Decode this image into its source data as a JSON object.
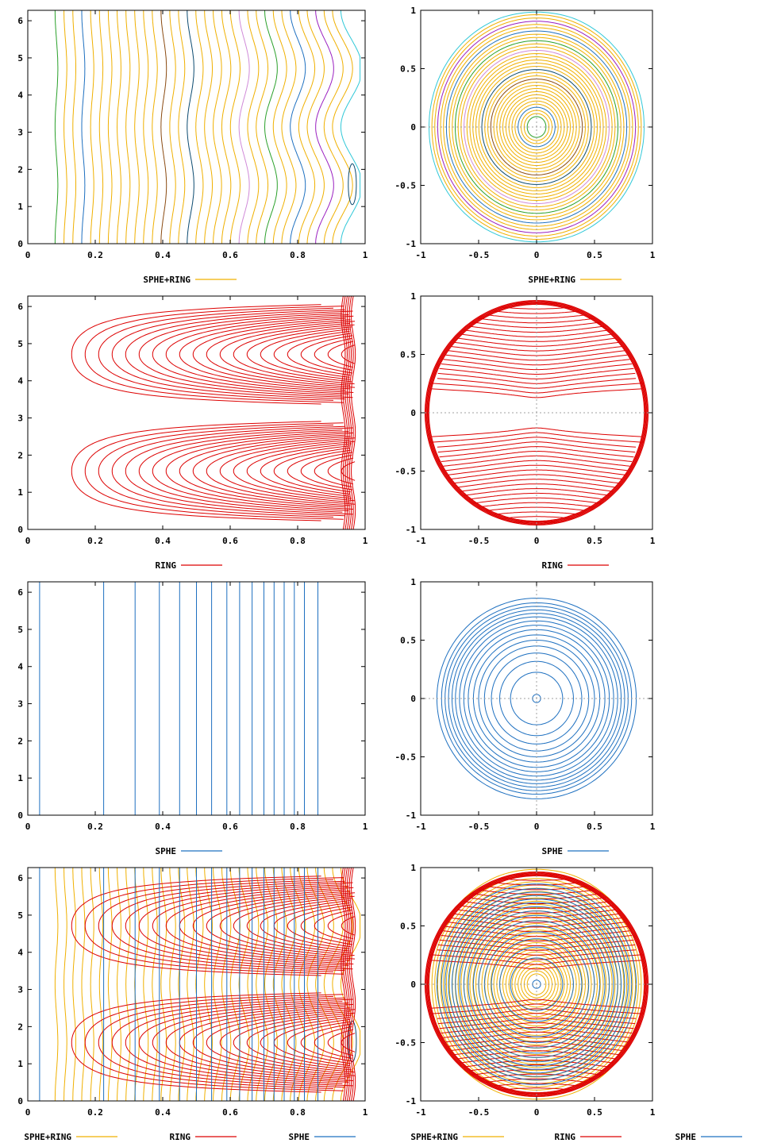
{
  "colors": {
    "sphe_ring": "#f0b000",
    "ring": "#dd0000",
    "sphe": "#1e70c0",
    "axis_grid": "#a0a0a0",
    "frame": "#000000"
  },
  "chart_data": [
    {
      "name": "rect-sphe-ring",
      "type": "contour",
      "coords": "rectangular",
      "xlim": [
        0,
        1
      ],
      "ylim": [
        0,
        6.28
      ],
      "xticks": [
        "0",
        "0.2",
        "0.4",
        "0.6",
        "0.8",
        "1"
      ],
      "yticks": [
        "0",
        "1",
        "2",
        "3",
        "4",
        "5",
        "6"
      ],
      "series": [
        {
          "name": "SPHE+RING",
          "color": "#f0b000"
        }
      ]
    },
    {
      "name": "polar-sphe-ring",
      "type": "contour",
      "coords": "polar",
      "xlim": [
        -1,
        1
      ],
      "ylim": [
        -1,
        1
      ],
      "xticks": [
        "-1",
        "-0.5",
        "0",
        "0.5",
        "1"
      ],
      "yticks": [
        "-1",
        "-0.5",
        "0",
        "0.5",
        "1"
      ],
      "series": [
        {
          "name": "SPHE+RING",
          "color": "#f0b000"
        }
      ]
    },
    {
      "name": "rect-ring",
      "type": "contour",
      "coords": "rectangular",
      "xlim": [
        0,
        1
      ],
      "ylim": [
        0,
        6.28
      ],
      "xticks": [
        "0",
        "0.2",
        "0.4",
        "0.6",
        "0.8",
        "1"
      ],
      "yticks": [
        "0",
        "1",
        "2",
        "3",
        "4",
        "5",
        "6"
      ],
      "series": [
        {
          "name": "RING",
          "color": "#dd0000"
        }
      ]
    },
    {
      "name": "polar-ring",
      "type": "contour",
      "coords": "polar",
      "xlim": [
        -1,
        1
      ],
      "ylim": [
        -1,
        1
      ],
      "xticks": [
        "-1",
        "-0.5",
        "0",
        "0.5",
        "1"
      ],
      "yticks": [
        "-1",
        "-0.5",
        "0",
        "0.5",
        "1"
      ],
      "series": [
        {
          "name": "RING",
          "color": "#dd0000"
        }
      ]
    },
    {
      "name": "rect-sphe",
      "type": "contour",
      "coords": "rectangular",
      "xlim": [
        0,
        1
      ],
      "ylim": [
        0,
        6.28
      ],
      "xticks": [
        "0",
        "0.2",
        "0.4",
        "0.6",
        "0.8",
        "1"
      ],
      "yticks": [
        "0",
        "1",
        "2",
        "3",
        "4",
        "5",
        "6"
      ],
      "series": [
        {
          "name": "SPHE",
          "color": "#1e70c0"
        }
      ]
    },
    {
      "name": "polar-sphe",
      "type": "contour",
      "coords": "polar",
      "xlim": [
        -1,
        1
      ],
      "ylim": [
        -1,
        1
      ],
      "xticks": [
        "-1",
        "-0.5",
        "0",
        "0.5",
        "1"
      ],
      "yticks": [
        "-1",
        "-0.5",
        "0",
        "0.5",
        "1"
      ],
      "series": [
        {
          "name": "SPHE",
          "color": "#1e70c0"
        }
      ]
    },
    {
      "name": "rect-all",
      "type": "contour",
      "coords": "rectangular",
      "xlim": [
        0,
        1
      ],
      "ylim": [
        0,
        6.28
      ],
      "xticks": [
        "0",
        "0.2",
        "0.4",
        "0.6",
        "0.8",
        "1"
      ],
      "yticks": [
        "0",
        "1",
        "2",
        "3",
        "4",
        "5",
        "6"
      ],
      "series": [
        {
          "name": "SPHE+RING",
          "color": "#f0b000"
        },
        {
          "name": "RING",
          "color": "#dd0000"
        },
        {
          "name": "SPHE",
          "color": "#1e70c0"
        }
      ]
    },
    {
      "name": "polar-all",
      "type": "contour",
      "coords": "polar",
      "xlim": [
        -1,
        1
      ],
      "ylim": [
        -1,
        1
      ],
      "xticks": [
        "-1",
        "-0.5",
        "0",
        "0.5",
        "1"
      ],
      "yticks": [
        "-1",
        "-0.5",
        "0",
        "0.5",
        "1"
      ],
      "series": [
        {
          "name": "SPHE+RING",
          "color": "#f0b000"
        },
        {
          "name": "RING",
          "color": "#dd0000"
        },
        {
          "name": "SPHE",
          "color": "#1e70c0"
        }
      ]
    }
  ]
}
